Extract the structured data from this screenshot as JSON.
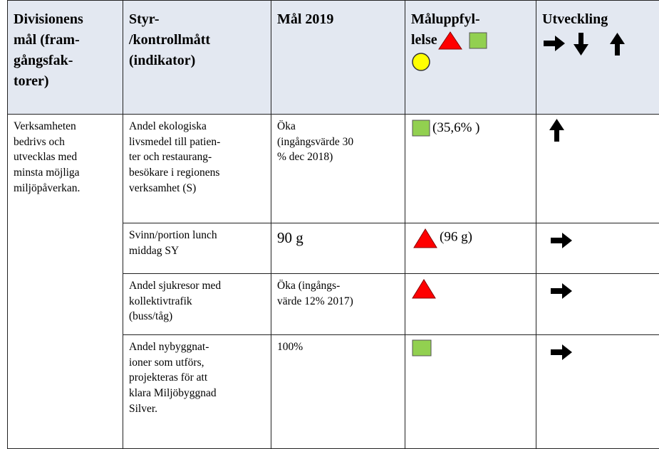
{
  "table": {
    "header": [
      [
        "Divisionens",
        "mål (fram-",
        "gångsfak-",
        "torer)"
      ],
      [
        "Styr-",
        "/kontrollmått",
        "(indikator)"
      ],
      [
        "Mål 2019"
      ],
      [
        "Måluppfyl-",
        "lelse"
      ],
      [
        "Utveckling"
      ]
    ],
    "division_goal": [
      "Verksamheten",
      "bedrivs och",
      "utvecklas med",
      "minsta möjliga",
      "miljöpåverkan."
    ],
    "rows": [
      {
        "indicator": [
          "Andel ekologiska",
          "livsmedel till patien-",
          "ter och restaurang-",
          "besökare i regionens",
          "verksamhet (S)"
        ],
        "goal": [
          "Öka",
          "(ingångsvärde 30",
          "% dec 2018)"
        ],
        "result": "(35,6% )"
      },
      {
        "indicator": [
          "Svinn/portion lunch",
          "middag SY"
        ],
        "goal": [
          "90 g"
        ],
        "result": "(96 g)"
      },
      {
        "indicator": [
          "Andel sjukresor med",
          "kollektivtrafik",
          "(buss/tåg)"
        ],
        "goal": [
          "Öka (ingångs-",
          "värde 12% 2017)"
        ]
      },
      {
        "indicator": [
          "Andel nybyggnat-",
          "ioner som utförs,",
          "projekteras för att",
          "klara Miljöbyggnad",
          "Silver."
        ],
        "goal": [
          "100%"
        ]
      }
    ]
  }
}
